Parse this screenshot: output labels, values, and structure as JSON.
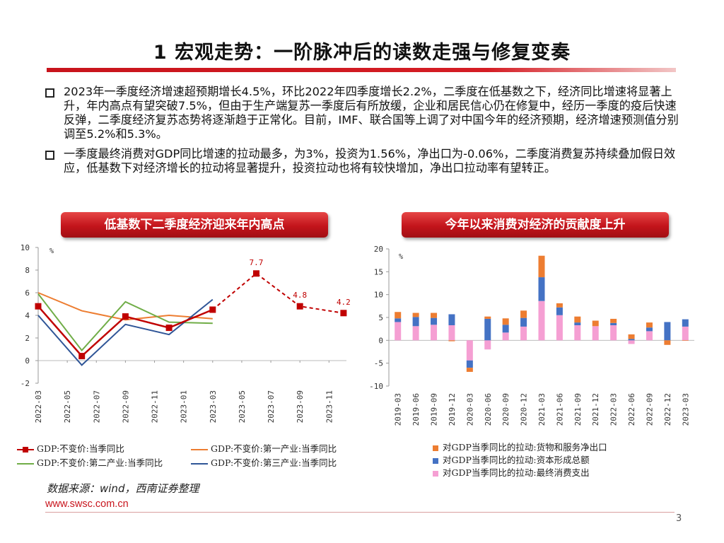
{
  "page": {
    "title": "1 宏观走势：一阶脉冲后的读数走强与修复变奏",
    "bullets": [
      "2023年一季度经济增速超预期增长4.5%，环比2022年四季度增长2.2%，二季度在低基数之下，经济同比增速将显著上升，年内高点有望突破7.5%，但由于生产端复苏一季度后有所放缓，企业和居民信心仍在修复中，经历一季度的疫后快速反弹，二季度经济复苏态势将逐渐趋于正常化。目前，IMF、联合国等上调了对中国今年的经济预期，经济增速预测值分别调至5.2%和5.3%。",
      "一季度最终消费对GDP同比增速的拉动最多，为3%，投资为1.56%，净出口为-0.06%，二季度消费复苏持续叠加假日效应，低基数下对经济增长的拉动将显著提升，投资拉动也将有较快增加，净出口拉动率有望转正。"
    ],
    "source": "数据来源：wind，西南证券整理",
    "url": "www.swsc.com.cn",
    "page_number": "3"
  },
  "chart_data": [
    {
      "type": "line",
      "title": "低基数下二季度经济迎来年内高点",
      "unit_label": "%",
      "ylim": [
        -2,
        10
      ],
      "yticks": [
        -2,
        0,
        2,
        4,
        6,
        8,
        10
      ],
      "x": [
        "2022-03",
        "2022-05",
        "2022-07",
        "2022-09",
        "2022-11",
        "2023-01",
        "2023-03",
        "2023-05",
        "2023-07",
        "2023-09",
        "2023-11"
      ],
      "series": [
        {
          "name": "GDP:不变价:当季同比",
          "color": "#c00000",
          "marker": "square",
          "points": [
            [
              "2022-03",
              4.8
            ],
            [
              "2022-06",
              0.4
            ],
            [
              "2022-09",
              3.9
            ],
            [
              "2022-12",
              2.9
            ],
            [
              "2023-03",
              4.5
            ]
          ],
          "forecast": [
            [
              "2023-03",
              4.5
            ],
            [
              "2023-06",
              7.7
            ],
            [
              "2023-09",
              4.8
            ],
            [
              "2023-12",
              4.2
            ]
          ],
          "labels": [
            {
              "x": "2023-06",
              "text": "7.7"
            },
            {
              "x": "2023-09",
              "text": "4.8"
            },
            {
              "x": "2023-12",
              "text": "4.2"
            }
          ]
        },
        {
          "name": "GDP:不变价:第一产业:当季同比",
          "color": "#ed7d31",
          "points": [
            [
              "2022-03",
              6.0
            ],
            [
              "2022-06",
              4.4
            ],
            [
              "2022-09",
              3.6
            ],
            [
              "2022-12",
              4.0
            ],
            [
              "2023-03",
              3.7
            ]
          ]
        },
        {
          "name": "GDP:不变价:第二产业:当季同比",
          "color": "#70ad47",
          "points": [
            [
              "2022-03",
              5.9
            ],
            [
              "2022-06",
              0.9
            ],
            [
              "2022-09",
              5.2
            ],
            [
              "2022-12",
              3.4
            ],
            [
              "2023-03",
              3.3
            ]
          ]
        },
        {
          "name": "GDP:不变价:第三产业:当季同比",
          "color": "#2f5597",
          "points": [
            [
              "2022-03",
              4.0
            ],
            [
              "2022-06",
              -0.4
            ],
            [
              "2022-09",
              3.2
            ],
            [
              "2022-12",
              2.3
            ],
            [
              "2023-03",
              5.4
            ]
          ]
        }
      ]
    },
    {
      "type": "bar",
      "stacked": true,
      "title": "今年以来消费对经济的贡献度上升",
      "unit_label": "%",
      "ylim": [
        -10,
        20
      ],
      "yticks": [
        -10,
        -5,
        0,
        5,
        10,
        15,
        20
      ],
      "categories": [
        "2019-03",
        "2019-06",
        "2019-09",
        "2019-12",
        "2020-03",
        "2020-06",
        "2020-09",
        "2020-12",
        "2021-03",
        "2021-06",
        "2021-09",
        "2021-12",
        "2022-03",
        "2022-06",
        "2022-09",
        "2022-12",
        "2023-03"
      ],
      "series": [
        {
          "name": "对GDP当季同比的拉动:最终消费支出",
          "color": "#f59fd3",
          "values": [
            4.0,
            3.1,
            3.4,
            3.3,
            -4.4,
            -2.0,
            1.7,
            3.0,
            8.6,
            5.5,
            3.3,
            3.1,
            3.3,
            -0.8,
            2.0,
            0.0,
            3.0
          ]
        },
        {
          "name": "对GDP当季同比的拉动:资本形成总额",
          "color": "#4472c4",
          "values": [
            0.8,
            2.0,
            1.5,
            2.4,
            -1.6,
            4.7,
            1.7,
            1.9,
            5.2,
            1.7,
            0.6,
            0.0,
            0.5,
            0.3,
            0.8,
            4.0,
            1.6
          ]
        },
        {
          "name": "对GDP当季同比的拉动:货物和服务净出口",
          "color": "#ed7d31",
          "values": [
            1.4,
            0.9,
            1.1,
            -0.2,
            -0.9,
            0.5,
            1.4,
            1.6,
            4.7,
            0.9,
            1.3,
            1.2,
            0.9,
            1.0,
            1.1,
            -1.0,
            -0.1
          ]
        }
      ]
    }
  ]
}
